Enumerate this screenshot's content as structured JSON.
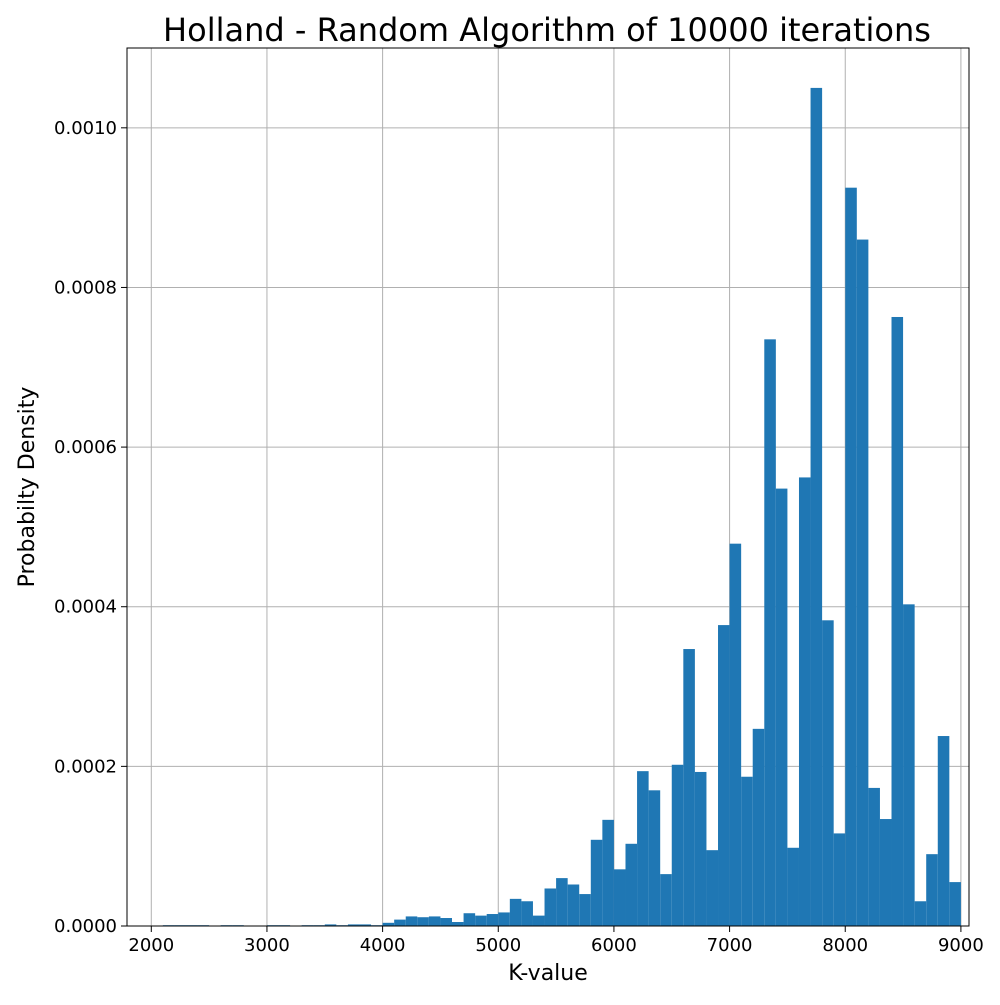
{
  "chart_data": {
    "type": "bar",
    "title": "Holland - Random Algorithm of 10000 iterations",
    "xlabel": "K-value",
    "ylabel": "Probabilty Density",
    "xlim": [
      1790,
      9070
    ],
    "ylim": [
      0,
      0.0011
    ],
    "grid": true,
    "bar_color": "#1f77b4",
    "bin_start": 2100,
    "bin_width": 100,
    "values": [
      1e-06,
      1e-06,
      1e-06,
      1e-06,
      0.0,
      1e-06,
      1e-06,
      0.0,
      0.0,
      1e-06,
      1e-06,
      0.0,
      1e-06,
      1e-06,
      2e-06,
      1e-06,
      2e-06,
      2e-06,
      1e-06,
      4e-06,
      8e-06,
      1.2e-05,
      1.1e-05,
      1.2e-05,
      1e-05,
      5e-06,
      1.6e-05,
      1.3e-05,
      1.5e-05,
      1.7e-05,
      3.4e-05,
      3.1e-05,
      1.3e-05,
      4.7e-05,
      6e-05,
      5.2e-05,
      4e-05,
      0.000108,
      0.000133,
      7.1e-05,
      0.000103,
      0.000194,
      0.00017,
      6.5e-05,
      0.000202,
      0.000347,
      0.000193,
      9.5e-05,
      0.000377,
      0.000479,
      0.000187,
      0.000247,
      0.000735,
      0.000548,
      9.8e-05,
      0.000562,
      0.00105,
      0.000383,
      0.000116,
      0.000925,
      0.00086,
      0.000173,
      0.000134,
      0.000763,
      0.000403,
      3.1e-05,
      9e-05,
      0.000238,
      5.5e-05
    ],
    "xticks": [
      {
        "value": 2000,
        "label": "2000"
      },
      {
        "value": 3000,
        "label": "3000"
      },
      {
        "value": 4000,
        "label": "4000"
      },
      {
        "value": 5000,
        "label": "5000"
      },
      {
        "value": 6000,
        "label": "6000"
      },
      {
        "value": 7000,
        "label": "7000"
      },
      {
        "value": 8000,
        "label": "8000"
      },
      {
        "value": 9000,
        "label": "9000"
      }
    ],
    "yticks": [
      {
        "value": 0,
        "label": "0.0000"
      },
      {
        "value": 0.0002,
        "label": "0.0002"
      },
      {
        "value": 0.0004,
        "label": "0.0004"
      },
      {
        "value": 0.0006,
        "label": "0.0006"
      },
      {
        "value": 0.0008,
        "label": "0.0008"
      },
      {
        "value": 0.001,
        "label": "0.0010"
      }
    ]
  }
}
